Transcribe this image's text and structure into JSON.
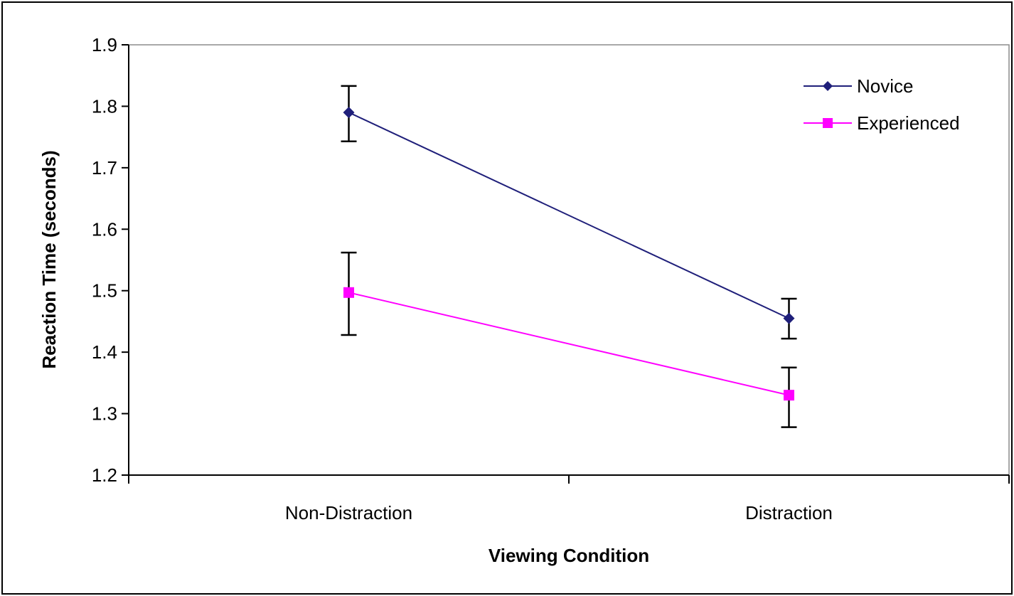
{
  "chart_data": {
    "type": "line",
    "title": "",
    "xlabel": "Viewing Condition",
    "ylabel": "Reaction Time (seconds)",
    "categories": [
      "Non-Distraction",
      "Distraction"
    ],
    "ylim": [
      1.2,
      1.9
    ],
    "yticks": [
      1.2,
      1.3,
      1.4,
      1.5,
      1.6,
      1.7,
      1.8,
      1.9
    ],
    "ytick_labels": [
      "1.2",
      "1.3",
      "1.4",
      "1.5",
      "1.6",
      "1.7",
      "1.8",
      "1.9"
    ],
    "grid": false,
    "legend_position": "top-right",
    "series": [
      {
        "name": "Novice",
        "values": [
          1.79,
          1.455
        ],
        "error_low": [
          1.743,
          1.422
        ],
        "error_high": [
          1.833,
          1.487
        ],
        "color": "#1f1f7a",
        "marker": "diamond"
      },
      {
        "name": "Experienced",
        "values": [
          1.497,
          1.33
        ],
        "error_low": [
          1.428,
          1.278
        ],
        "error_high": [
          1.562,
          1.375
        ],
        "color": "#ff00ff",
        "marker": "square"
      }
    ]
  }
}
